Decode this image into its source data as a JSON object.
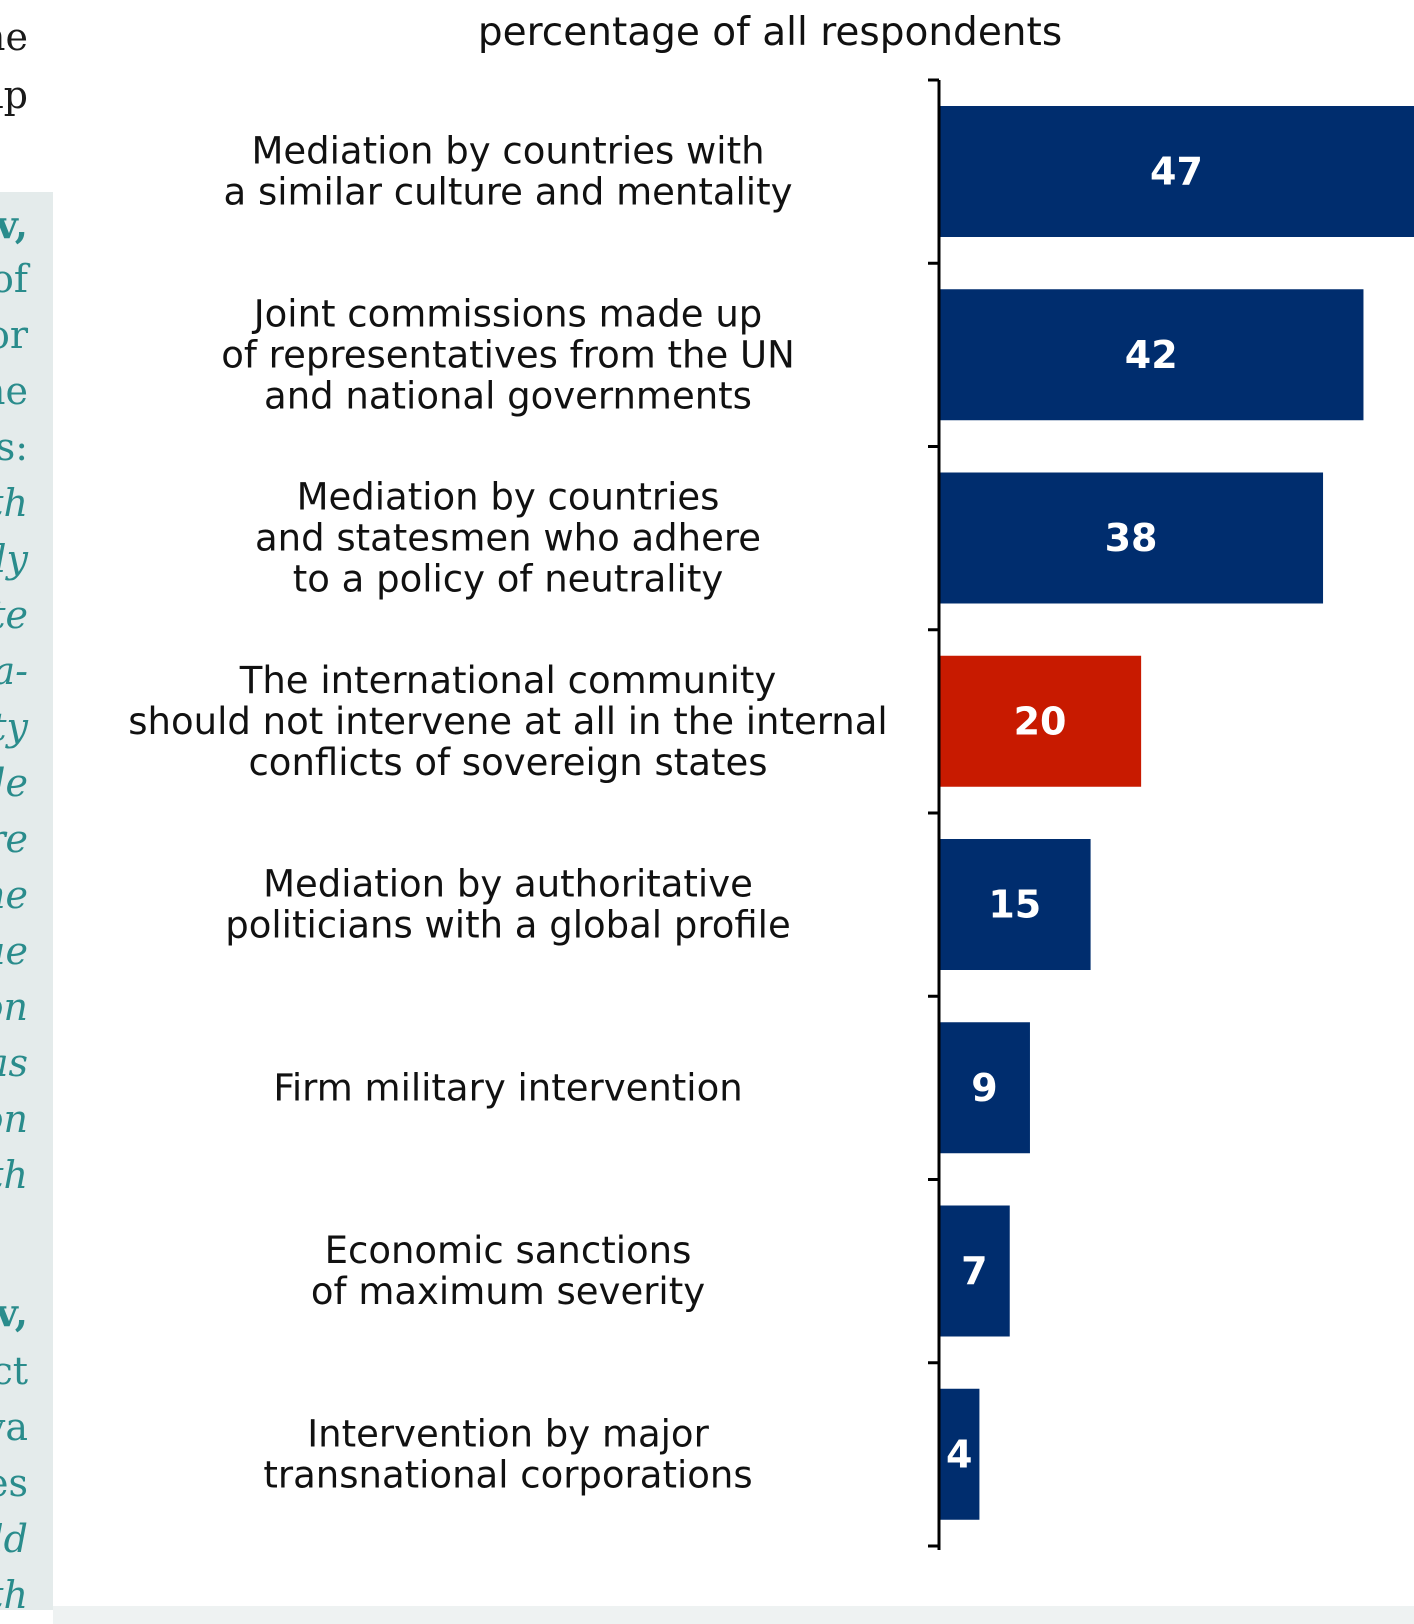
{
  "chart_data": {
    "type": "bar",
    "orientation": "horizontal",
    "title": "",
    "subtitle": "percentage of all respondents",
    "xlim": [
      0,
      47
    ],
    "categories": [
      "Mediation by countries with\na similar culture and mentality",
      "Joint commissions made up\nof representatives from the UN\nand national governments",
      "Mediation by countries\nand statesmen who adhere\nto a policy of neutrality",
      "The international community\nshould not intervene at all in the internal\nconflicts of sovereign states",
      "Mediation by authoritative\npoliticians with a global profile",
      "Firm military intervention",
      "Economic sanctions\nof maximum severity",
      "Intervention by major\ntransnational corporations"
    ],
    "values": [
      47,
      42,
      38,
      20,
      15,
      9,
      7,
      4
    ],
    "colors": [
      "#002d6e",
      "#002d6e",
      "#002d6e",
      "#c81a00",
      "#002d6e",
      "#002d6e",
      "#002d6e",
      "#002d6e"
    ],
    "highlight_index": 3,
    "grid": false,
    "legend": "none"
  },
  "theme": {
    "bar_color": "#002d6e",
    "highlight_color": "#c81a00",
    "axis_color": "#000000",
    "panel_color": "#e4ebeb",
    "teal_text_color": "#2a8c8c"
  },
  "left_column_fragments": [
    {
      "text": "ne",
      "style": "dark"
    },
    {
      "text": "ıp",
      "style": "dark"
    },
    {
      "text": "v,",
      "style": "teal-bold"
    },
    {
      "text": "of",
      "style": "teal"
    },
    {
      "text": "or",
      "style": "teal"
    },
    {
      "text": "ne",
      "style": "teal"
    },
    {
      "text": "s:",
      "style": "teal"
    },
    {
      "text": "th",
      "style": "teal-italic"
    },
    {
      "text": "ly",
      "style": "teal-italic"
    },
    {
      "text": "te",
      "style": "teal-italic"
    },
    {
      "text": "a-",
      "style": "teal-italic"
    },
    {
      "text": "ty",
      "style": "teal-italic"
    },
    {
      "text": "de",
      "style": "teal-italic"
    },
    {
      "text": "re",
      "style": "teal-italic"
    },
    {
      "text": "ne",
      "style": "teal-italic"
    },
    {
      "text": "ue",
      "style": "teal-italic"
    },
    {
      "text": "on",
      "style": "teal-italic"
    },
    {
      "text": "as",
      "style": "teal-italic"
    },
    {
      "text": "on",
      "style": "teal-italic"
    },
    {
      "text": "th",
      "style": "teal-italic"
    },
    {
      "text": "v,",
      "style": "teal-bold"
    },
    {
      "text": "ct",
      "style": "teal"
    },
    {
      "text": "va",
      "style": "teal"
    },
    {
      "text": "es",
      "style": "teal"
    },
    {
      "text": "ld",
      "style": "teal-italic"
    },
    {
      "text": "th",
      "style": "teal-italic"
    }
  ]
}
